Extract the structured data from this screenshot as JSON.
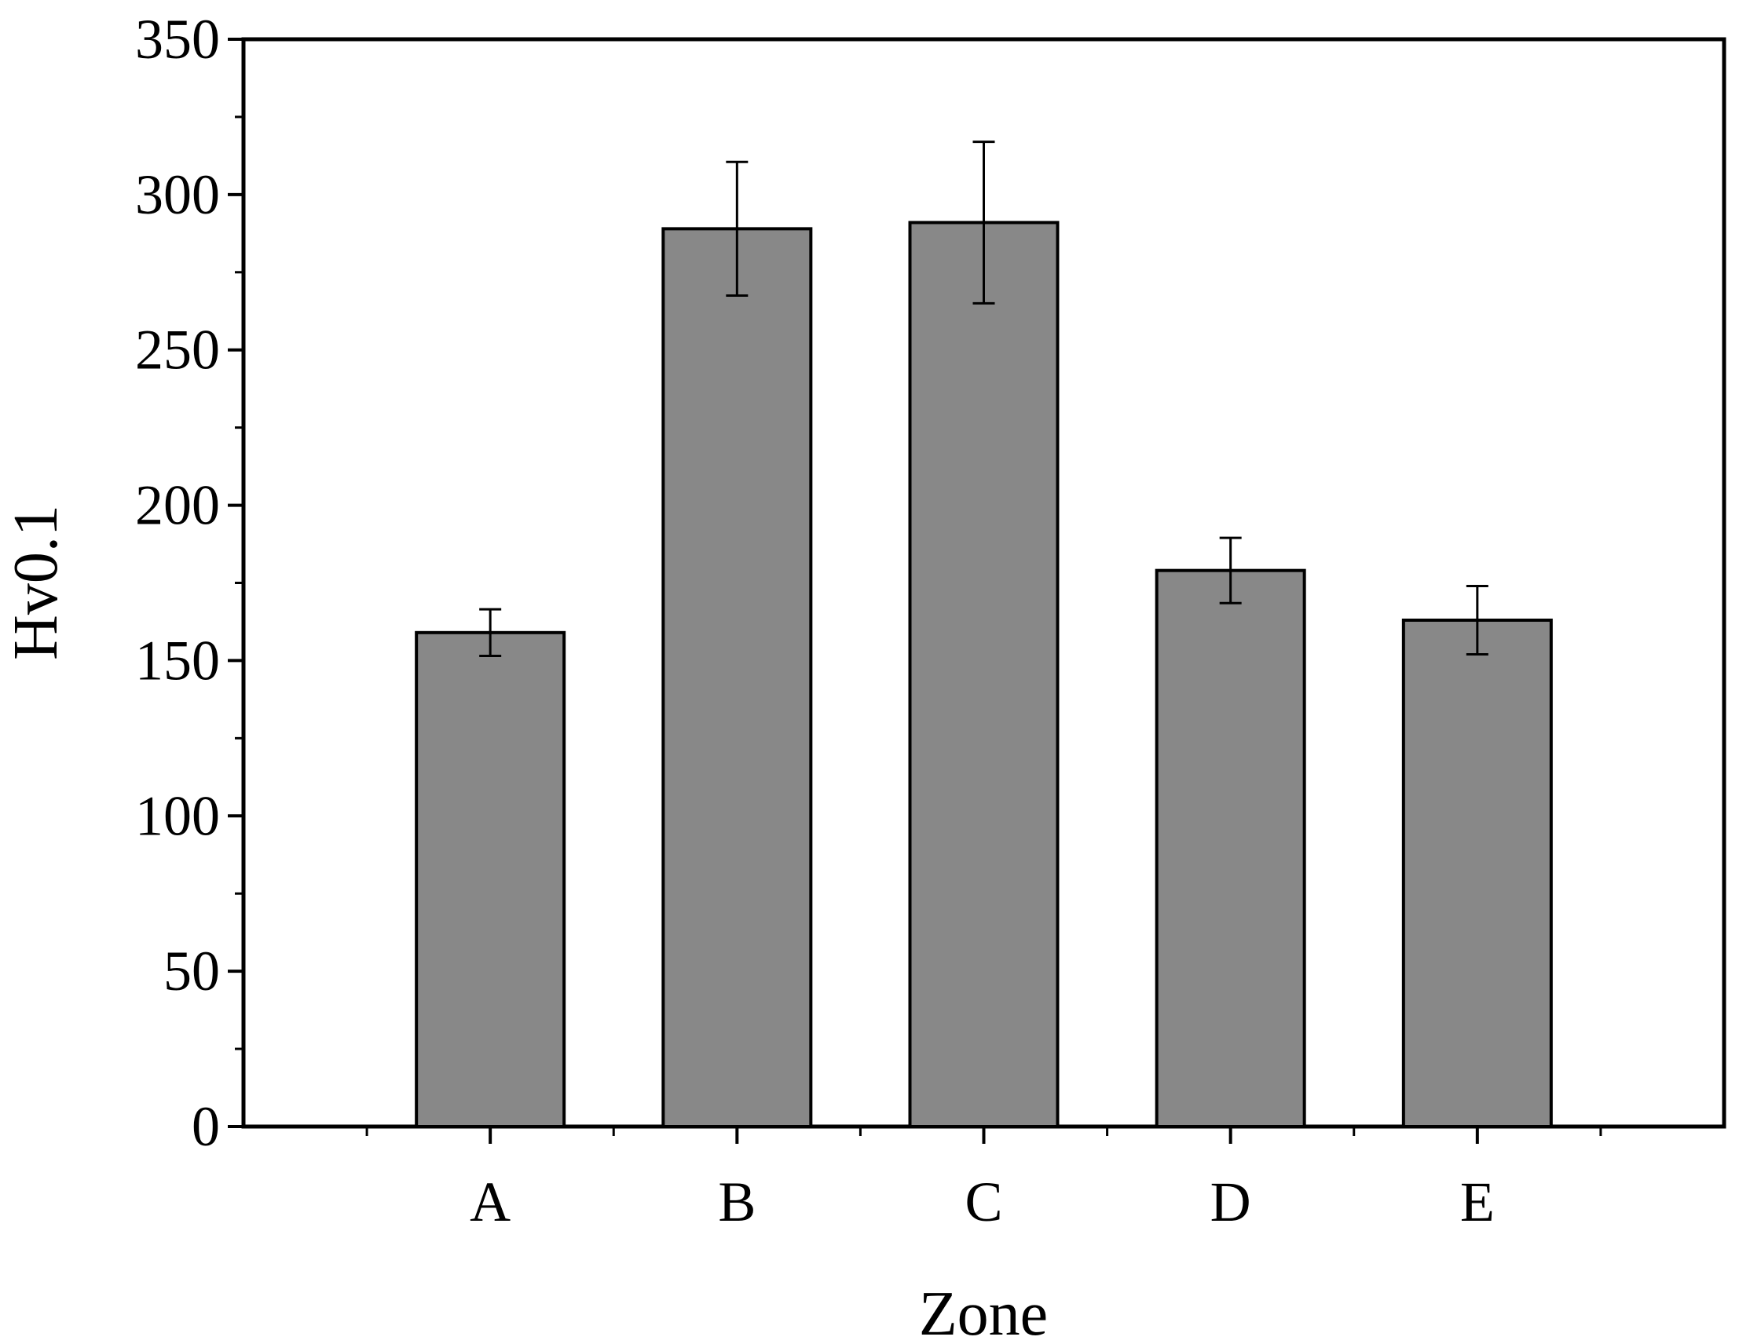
{
  "chart_data": {
    "type": "bar",
    "title": "",
    "xlabel": "Zone",
    "ylabel": "Hv0.1",
    "categories": [
      "A",
      "B",
      "C",
      "D",
      "E"
    ],
    "values": [
      159,
      289,
      291,
      179,
      163
    ],
    "errors": [
      7.5,
      21.5,
      26,
      10.5,
      11
    ],
    "ylim": [
      0,
      350
    ],
    "yticks": [
      0,
      50,
      100,
      150,
      200,
      250,
      300,
      350
    ],
    "ytick_labels": [
      "0",
      "50",
      "100",
      "150",
      "200",
      "250",
      "300",
      "350"
    ],
    "grid": false,
    "legend": "none",
    "colors": {
      "bar_fill": "#888888",
      "bar_stroke": "#000000",
      "axis": "#000000"
    }
  }
}
